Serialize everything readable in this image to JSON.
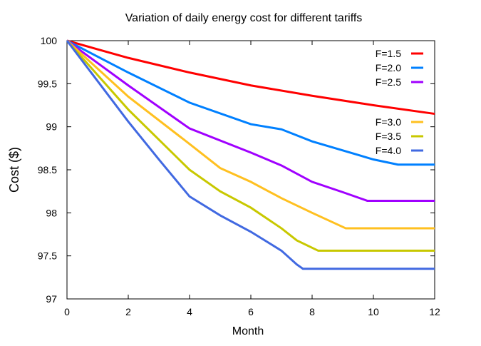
{
  "chart_data": {
    "type": "line",
    "title": "Variation of daily energy cost for different tariffs",
    "xlabel": "Month",
    "ylabel": "Cost ($)",
    "xlim": [
      0,
      12
    ],
    "ylim": [
      97,
      100
    ],
    "xticks": [
      0,
      2,
      4,
      6,
      8,
      10,
      12
    ],
    "yticks": [
      97,
      97.5,
      98,
      98.5,
      99,
      99.5,
      100
    ],
    "ytick_labels": [
      "97",
      "97.5",
      "98",
      "98.5",
      "99",
      "99.5",
      "100"
    ],
    "grid": false,
    "legend_placement": "top-right",
    "series": [
      {
        "name": "F=1.5",
        "color": "#ff0000",
        "x": [
          0,
          2,
          4,
          6,
          8,
          10,
          12
        ],
        "y": [
          100,
          99.8,
          99.63,
          99.48,
          99.36,
          99.25,
          99.15
        ]
      },
      {
        "name": "F=2.0",
        "color": "#0080ff",
        "x": [
          0,
          2,
          4,
          6,
          7,
          8,
          10,
          10.8,
          12
        ],
        "y": [
          100,
          99.63,
          99.28,
          99.03,
          98.97,
          98.83,
          98.62,
          98.56,
          98.56
        ]
      },
      {
        "name": "F=2.5",
        "color": "#a000ff",
        "x": [
          0,
          2,
          4,
          6,
          7,
          8,
          9,
          9.8,
          12
        ],
        "y": [
          100,
          99.48,
          98.98,
          98.7,
          98.55,
          98.36,
          98.24,
          98.14,
          98.14
        ]
      },
      {
        "name": "F=3.0",
        "color": "#ffc020",
        "x": [
          0,
          2,
          4,
          5,
          6,
          7,
          8,
          9.1,
          12
        ],
        "y": [
          100,
          99.35,
          98.8,
          98.52,
          98.36,
          98.17,
          98.0,
          97.82,
          97.82
        ]
      },
      {
        "name": "F=3.5",
        "color": "#c8c800",
        "x": [
          0,
          2,
          4,
          5,
          6,
          7,
          7.5,
          8.2,
          12
        ],
        "y": [
          100,
          99.2,
          98.5,
          98.25,
          98.06,
          97.82,
          97.68,
          97.56,
          97.56
        ]
      },
      {
        "name": "F=4.0",
        "color": "#4169e1",
        "x": [
          0,
          2,
          3,
          4,
          5,
          6,
          7,
          7.5,
          7.7,
          12
        ],
        "y": [
          100,
          99.06,
          98.62,
          98.19,
          97.97,
          97.78,
          97.56,
          97.4,
          97.35,
          97.35
        ]
      }
    ]
  }
}
